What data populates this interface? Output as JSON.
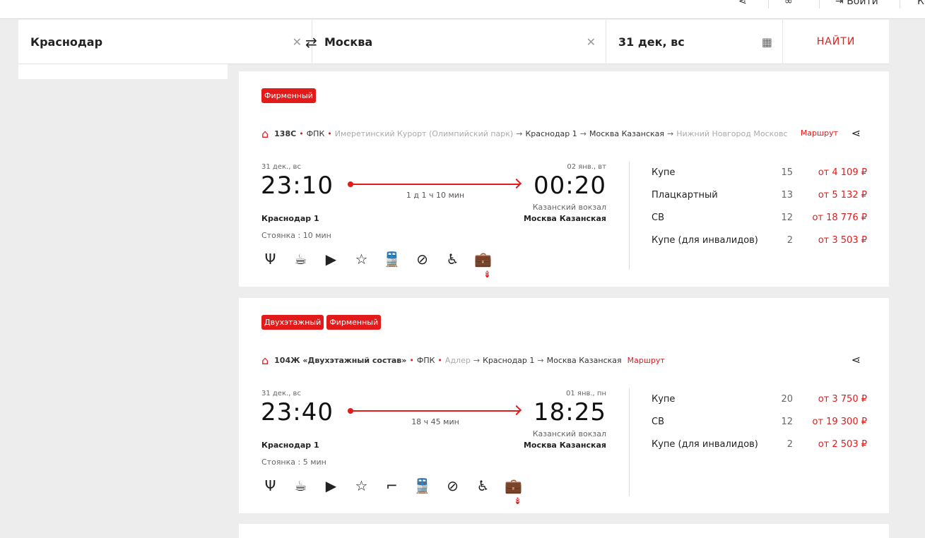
{
  "top": {
    "login": "Войти",
    "more": "К"
  },
  "search": {
    "from": "Краснодар",
    "to": "Москва",
    "date": "31 дек, вс",
    "find": "НАЙТИ"
  },
  "colors": {
    "accent": "#e21a1a"
  },
  "trains": [
    {
      "badges": [
        "Фирменный"
      ],
      "number": "138С",
      "carrier": "ФПК",
      "route": [
        "Имеретинский Курорт (Олимпийский парк)",
        "Краснодар 1",
        "Москва Казанская",
        "Нижний Новгород Московс"
      ],
      "route_link": "Маршрут",
      "dep_date": "31 дек., вс",
      "dep_time": "23:10",
      "arr_date": "02 янв., вт",
      "arr_time": "00:20",
      "duration": "1 д 1 ч 10 мин",
      "dep_station": "Краснодар 1",
      "arr_station_note": "Казанский вокзал",
      "arr_station": "Москва Казанская",
      "stop": "Стоянка : 10 мин",
      "icons": [
        "restaurant-icon",
        "coffee-icon",
        "video-icon",
        "star-icon",
        "train-icon",
        "no-pets-icon",
        "wheelchair-icon",
        "luggage-icon"
      ],
      "luggage_count": "8",
      "classes": [
        {
          "name": "Купе",
          "seats": "15",
          "price": "от 4 109 ₽"
        },
        {
          "name": "Плацкартный",
          "seats": "13",
          "price": "от 5 132 ₽"
        },
        {
          "name": "СВ",
          "seats": "12",
          "price": "от 18 776 ₽"
        },
        {
          "name": "Купе (для инвалидов)",
          "seats": "2",
          "price": "от 3 503 ₽"
        }
      ]
    },
    {
      "badges": [
        "Двухэтажный",
        "Фирменный"
      ],
      "number": "104Ж «Двухэтажный состав»",
      "carrier": "ФПК",
      "route": [
        "Адлер",
        "Краснодар 1",
        "Москва Казанская"
      ],
      "route_link": "Маршрут",
      "dep_date": "31 дек., вс",
      "dep_time": "23:40",
      "arr_date": "01 янв., пн",
      "arr_time": "18:25",
      "duration": "18 ч 45 мин",
      "dep_station": "Краснодар 1",
      "arr_station_note": "Казанский вокзал",
      "arr_station": "Москва Казанская",
      "stop": "Стоянка : 5 мин",
      "icons": [
        "restaurant-icon",
        "coffee-icon",
        "video-icon",
        "star-icon",
        "stairs-icon",
        "train-icon",
        "no-pets-icon",
        "wheelchair-icon",
        "luggage-icon"
      ],
      "luggage_count": "8",
      "classes": [
        {
          "name": "Купе",
          "seats": "20",
          "price": "от 3 750 ₽"
        },
        {
          "name": "СВ",
          "seats": "12",
          "price": "от 19 300 ₽"
        },
        {
          "name": "Купе (для инвалидов)",
          "seats": "2",
          "price": "от 2 503 ₽"
        }
      ]
    }
  ]
}
